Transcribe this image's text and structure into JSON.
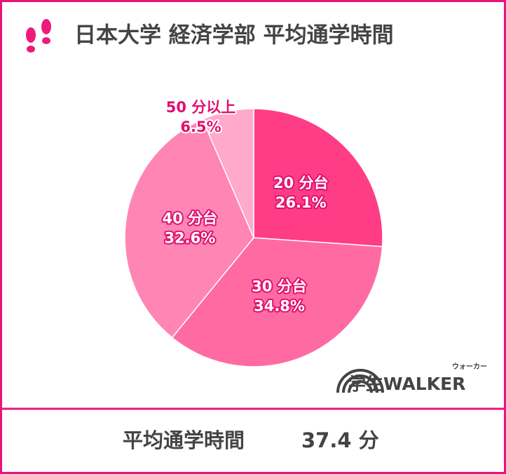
{
  "chart_data": {
    "type": "pie",
    "title": "日本大学 経済学部 平均通学時間",
    "categories": [
      "20 分台",
      "30 分台",
      "40 分台",
      "50 分以上"
    ],
    "values": [
      26.1,
      34.8,
      32.6,
      6.5
    ],
    "value_labels": [
      "26.1%",
      "34.8%",
      "32.6%",
      "6.5%"
    ],
    "colors": [
      "#ff3d87",
      "#ff6aa3",
      "#ff85b5",
      "#ffaaca"
    ]
  },
  "footer": {
    "label": "平均通学時間",
    "value": "37.4 分"
  },
  "logo": {
    "text": "学生WALKER",
    "reading": "ウォーカー"
  }
}
